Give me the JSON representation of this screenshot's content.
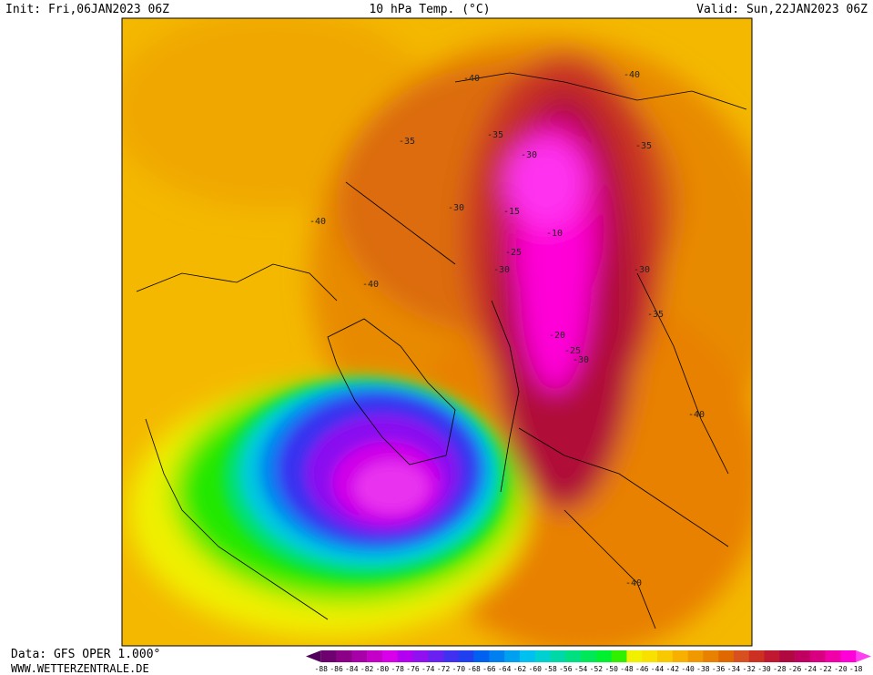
{
  "header": {
    "init": "Init: Fri,06JAN2023 06Z",
    "title": "10 hPa Temp. (°C)",
    "valid": "Valid: Sun,22JAN2023 06Z"
  },
  "map": {
    "contour_labels": [
      -40,
      -40,
      -35,
      -35,
      -35,
      -30,
      -30,
      -15,
      -10,
      -25,
      -30,
      -30,
      -35,
      -20,
      -25,
      -30,
      -40,
      -40,
      -40,
      -40
    ]
  },
  "colorbar": {
    "labels": [
      -88,
      -86,
      -84,
      -82,
      -80,
      -78,
      -76,
      -74,
      -72,
      -70,
      -68,
      -66,
      -64,
      -62,
      -60,
      -58,
      -56,
      -54,
      -52,
      -50,
      -48,
      -46,
      -44,
      -42,
      -40,
      -38,
      -36,
      -34,
      -32,
      -30,
      -28,
      -26,
      -24,
      -22,
      -20,
      -18
    ],
    "colors": [
      "#50005a",
      "#6e0070",
      "#8c0088",
      "#a800a8",
      "#c400c8",
      "#d800e8",
      "#b400f0",
      "#9010f0",
      "#6a20f0",
      "#4030f0",
      "#2040f0",
      "#0060f0",
      "#0080f0",
      "#00a0f0",
      "#00c0f0",
      "#00d0d0",
      "#00d8a8",
      "#00e080",
      "#00e858",
      "#00f030",
      "#30f000",
      "#f0f000",
      "#f8e000",
      "#f8c800",
      "#f8b000",
      "#f09800",
      "#e88000",
      "#e06800",
      "#d85020",
      "#cc3020",
      "#c01830",
      "#b00840",
      "#c00060",
      "#d80080",
      "#f000a8",
      "#ff00d8",
      "#ff40f0"
    ]
  },
  "footer": {
    "source": "Data: GFS OPER 1.000°",
    "site": "WWW.WETTERZENTRALE.DE"
  }
}
